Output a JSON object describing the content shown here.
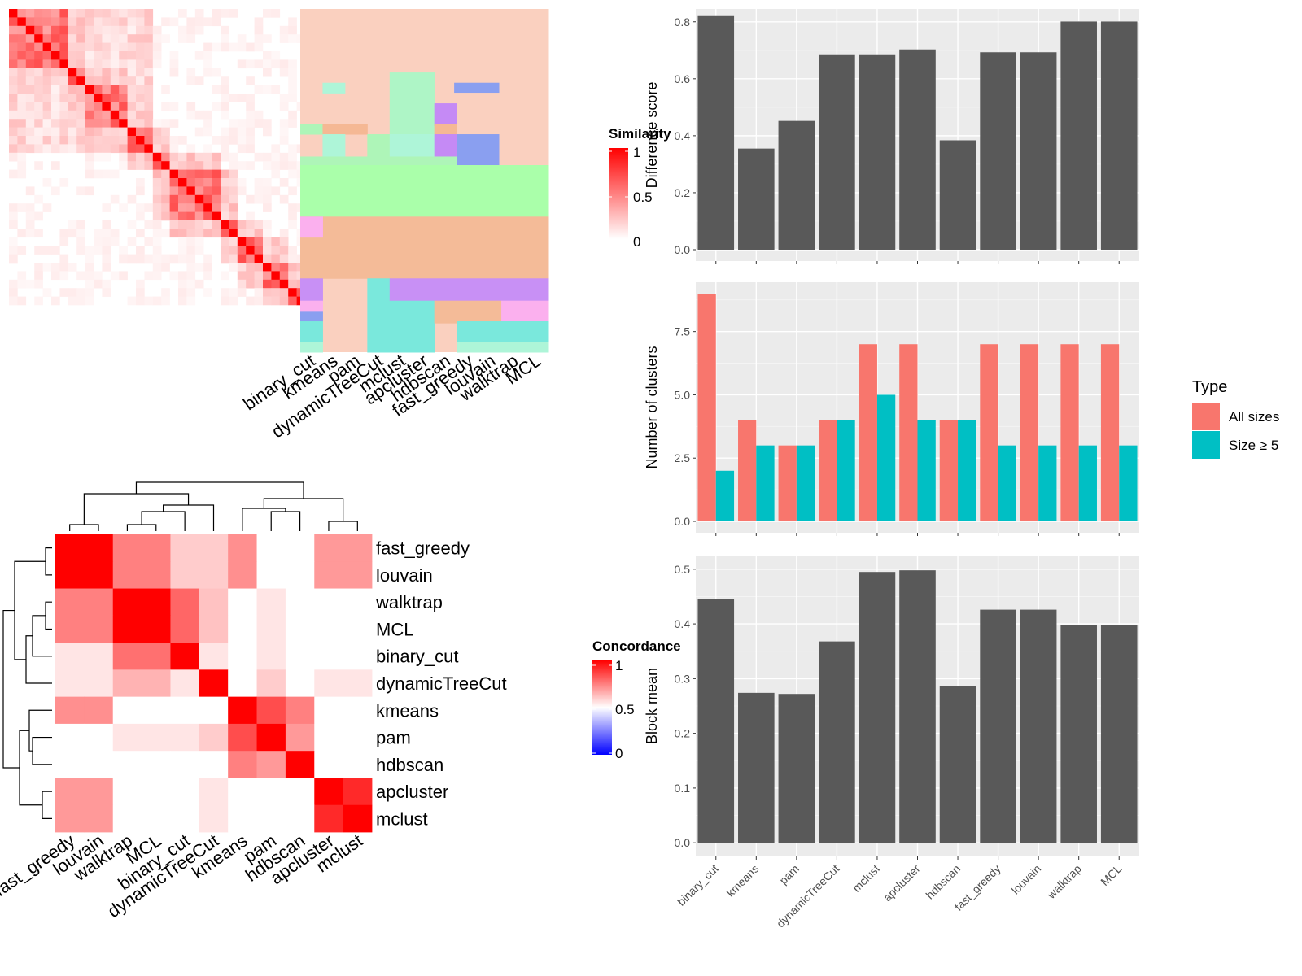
{
  "colors": {
    "panel_bg": "#ebebeb",
    "grid_major": "#ffffff",
    "bar_fill": "#595959",
    "all_sizes": "#f8766d",
    "size_ge_5": "#00bfc4"
  },
  "similarity_legend": {
    "title": "Similarity",
    "ticks": [
      "1",
      "0.5",
      "0"
    ]
  },
  "concordance_legend": {
    "title": "Concordance",
    "ticks": [
      "1",
      "0.5",
      "0"
    ]
  },
  "type_legend": {
    "title": "Type",
    "items": [
      "All sizes",
      "Size ≥ 5"
    ]
  },
  "chart_data": [
    {
      "type": "heatmap",
      "description_id": "cell-similarity-heatmap",
      "size": 35,
      "values_note": "cell by cell similarity, strongly block-diagonal",
      "legend_title": "Similarity"
    },
    {
      "type": "heatmap",
      "description_id": "cluster-assignment-map",
      "methods": [
        "binary_cut",
        "kmeans",
        "pam",
        "dynamicTreeCut",
        "mclust",
        "apcluster",
        "hdbscan",
        "fast_greedy",
        "louvain",
        "walktrap",
        "MCL"
      ]
    },
    {
      "type": "heatmap",
      "description_id": "concordance-heatmap",
      "legend_title": "Concordance",
      "labels": [
        "fast_greedy",
        "louvain",
        "walktrap",
        "MCL",
        "binary_cut",
        "dynamicTreeCut",
        "kmeans",
        "pam",
        "hdbscan",
        "apcluster",
        "mclust"
      ],
      "values": [
        [
          1.0,
          1.0,
          0.75,
          0.75,
          0.6,
          0.6,
          0.72,
          0.5,
          0.5,
          0.7,
          0.7
        ],
        [
          1.0,
          1.0,
          0.75,
          0.75,
          0.6,
          0.6,
          0.72,
          0.5,
          0.5,
          0.7,
          0.7
        ],
        [
          0.75,
          0.75,
          1.0,
          1.0,
          0.8,
          0.62,
          0.35,
          0.55,
          0.48,
          0.45,
          0.4
        ],
        [
          0.75,
          0.75,
          1.0,
          1.0,
          0.8,
          0.62,
          0.35,
          0.55,
          0.48,
          0.45,
          0.4
        ],
        [
          0.55,
          0.55,
          0.78,
          0.78,
          1.0,
          0.55,
          0.2,
          0.55,
          0.3,
          0.35,
          0.3
        ],
        [
          0.55,
          0.55,
          0.65,
          0.65,
          0.55,
          1.0,
          0.45,
          0.6,
          0.4,
          0.55,
          0.55
        ],
        [
          0.72,
          0.72,
          0.35,
          0.35,
          0.2,
          0.45,
          1.0,
          0.85,
          0.75,
          0.45,
          0.4
        ],
        [
          0.5,
          0.5,
          0.55,
          0.55,
          0.55,
          0.6,
          0.85,
          1.0,
          0.7,
          0.15,
          0.08
        ],
        [
          0.5,
          0.5,
          0.48,
          0.48,
          0.3,
          0.4,
          0.75,
          0.7,
          1.0,
          0.25,
          0.2
        ],
        [
          0.7,
          0.7,
          0.4,
          0.4,
          0.35,
          0.55,
          0.45,
          0.15,
          0.25,
          1.0,
          0.92
        ],
        [
          0.7,
          0.7,
          0.35,
          0.35,
          0.3,
          0.55,
          0.4,
          0.08,
          0.2,
          0.92,
          1.0
        ]
      ],
      "scale": [
        0,
        1
      ]
    },
    {
      "type": "bar",
      "description_id": "difference-score",
      "categories": [
        "binary_cut",
        "kmeans",
        "pam",
        "dynamicTreeCut",
        "mclust",
        "apcluster",
        "hdbscan",
        "fast_greedy",
        "louvain",
        "walktrap",
        "MCL"
      ],
      "values": [
        0.82,
        0.355,
        0.452,
        0.683,
        0.683,
        0.703,
        0.384,
        0.693,
        0.693,
        0.801,
        0.801
      ],
      "ylabel": "Difference score",
      "ylim": [
        -0.04,
        0.845
      ],
      "yticks": [
        "0.0",
        "0.2",
        "0.4",
        "0.6",
        "0.8"
      ]
    },
    {
      "type": "bar",
      "description_id": "number-of-clusters",
      "categories": [
        "binary_cut",
        "kmeans",
        "pam",
        "dynamicTreeCut",
        "mclust",
        "apcluster",
        "hdbscan",
        "fast_greedy",
        "louvain",
        "walktrap",
        "MCL"
      ],
      "series": [
        {
          "name": "All sizes",
          "values": [
            9,
            4,
            3,
            4,
            7,
            7,
            4,
            7,
            7,
            7,
            7
          ]
        },
        {
          "name": "Size ≥ 5",
          "values": [
            2,
            3,
            3,
            4,
            5,
            4,
            4,
            3,
            3,
            3,
            3
          ]
        }
      ],
      "ylabel": "Number of clusters",
      "ylim": [
        -0.45,
        9.45
      ],
      "yticks": [
        "0.0",
        "2.5",
        "5.0",
        "7.5"
      ]
    },
    {
      "type": "bar",
      "description_id": "block-mean",
      "categories": [
        "binary_cut",
        "kmeans",
        "pam",
        "dynamicTreeCut",
        "mclust",
        "apcluster",
        "hdbscan",
        "fast_greedy",
        "louvain",
        "walktrap",
        "MCL"
      ],
      "values": [
        0.445,
        0.274,
        0.272,
        0.368,
        0.495,
        0.498,
        0.287,
        0.426,
        0.426,
        0.398,
        0.398
      ],
      "ylabel": "Block mean",
      "ylim": [
        -0.025,
        0.525
      ],
      "yticks": [
        "0.0",
        "0.1",
        "0.2",
        "0.3",
        "0.4",
        "0.5"
      ]
    }
  ]
}
